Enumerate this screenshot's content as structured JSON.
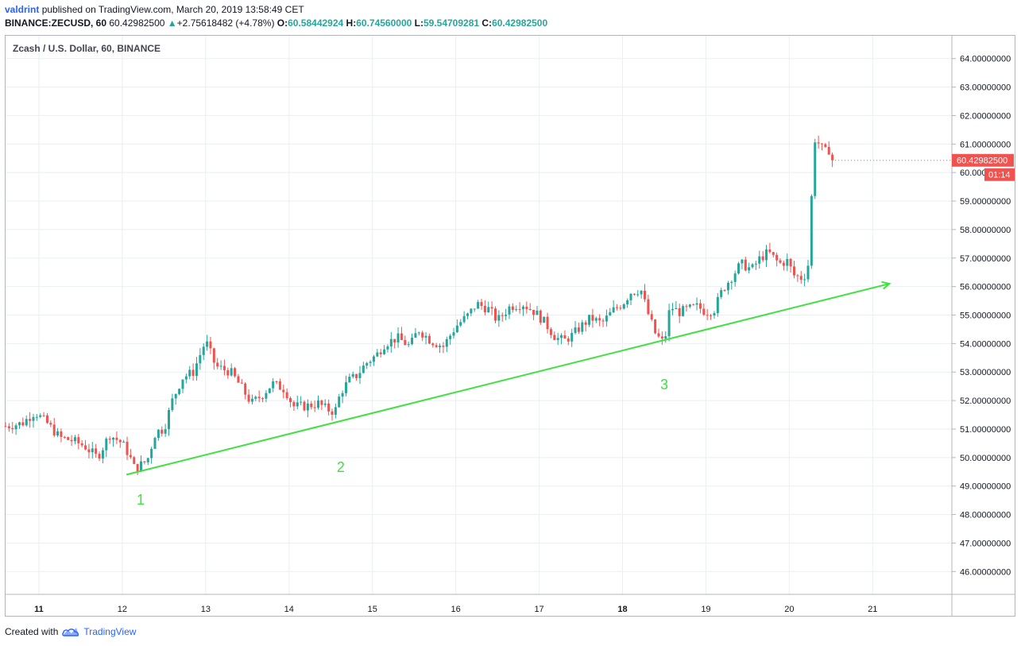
{
  "header": {
    "user": "valdrint",
    "published": "published on TradingView.com, March 20, 2019 13:58:49 CET",
    "symbol": "BINANCE:ZECUSD, 60",
    "last": "60.42982500",
    "change_arrow": "▲",
    "change": "+2.75618482 (+4.78%)",
    "o_label": "O:",
    "o": "60.58442924",
    "h_label": "H:",
    "h": "60.74560000",
    "l_label": "L:",
    "l": "59.54709281",
    "c_label": "C:",
    "c": "60.42982500"
  },
  "footer": {
    "created": "Created with",
    "brand": "TradingView",
    "logo_icon": "tradingview-cloud-icon"
  },
  "colors": {
    "up": "#26a69a",
    "down": "#ef5350",
    "trend": "#40e040",
    "grid": "#e9eff3",
    "price_tag": "#ef5350"
  },
  "chart_data": {
    "type": "candlestick",
    "title": "Zcash / U.S. Dollar, 60, BINANCE",
    "x_ticks": [
      "11",
      "12",
      "13",
      "14",
      "15",
      "16",
      "17",
      "18",
      "19",
      "20",
      "21"
    ],
    "x_ticks_bold": [
      "11",
      "18"
    ],
    "xlim_days": [
      10.6,
      21.95
    ],
    "ylim": [
      45.2,
      64.8
    ],
    "y_ticks": [
      "46.00000000",
      "47.00000000",
      "48.00000000",
      "49.00000000",
      "50.00000000",
      "51.00000000",
      "52.00000000",
      "53.00000000",
      "54.00000000",
      "55.00000000",
      "56.00000000",
      "57.00000000",
      "58.00000000",
      "59.00000000",
      "60.00000000",
      "61.00000000",
      "62.00000000",
      "63.00000000",
      "64.00000000"
    ],
    "last_price_label": "60.42982500",
    "countdown_label": "01:14",
    "closes": [
      [
        10.6,
        51.1
      ],
      [
        10.8,
        51.2
      ],
      [
        10.95,
        51.6
      ],
      [
        11.1,
        51.2
      ],
      [
        11.25,
        50.7
      ],
      [
        11.4,
        50.6
      ],
      [
        11.55,
        50.4
      ],
      [
        11.7,
        50.0
      ],
      [
        11.85,
        50.8
      ],
      [
        12.0,
        50.5
      ],
      [
        12.08,
        50.1
      ],
      [
        12.15,
        49.6
      ],
      [
        12.3,
        49.9
      ],
      [
        12.4,
        50.9
      ],
      [
        12.5,
        51.0
      ],
      [
        12.6,
        52.0
      ],
      [
        12.72,
        52.8
      ],
      [
        12.85,
        53.0
      ],
      [
        13.0,
        54.1
      ],
      [
        13.12,
        53.2
      ],
      [
        13.3,
        53.0
      ],
      [
        13.42,
        52.5
      ],
      [
        13.55,
        51.9
      ],
      [
        13.68,
        52.2
      ],
      [
        13.8,
        52.6
      ],
      [
        13.95,
        52.4
      ],
      [
        14.05,
        51.8
      ],
      [
        14.2,
        51.8
      ],
      [
        14.35,
        51.9
      ],
      [
        14.45,
        51.7
      ],
      [
        14.55,
        51.6
      ],
      [
        14.62,
        52.3
      ],
      [
        14.72,
        52.7
      ],
      [
        14.82,
        52.9
      ],
      [
        14.92,
        53.3
      ],
      [
        15.05,
        53.6
      ],
      [
        15.15,
        54.0
      ],
      [
        15.3,
        54.2
      ],
      [
        15.45,
        53.9
      ],
      [
        15.55,
        54.5
      ],
      [
        15.7,
        54.1
      ],
      [
        15.85,
        53.9
      ],
      [
        16.0,
        54.6
      ],
      [
        16.15,
        55.0
      ],
      [
        16.25,
        55.4
      ],
      [
        16.4,
        55.2
      ],
      [
        16.5,
        54.8
      ],
      [
        16.65,
        55.3
      ],
      [
        16.8,
        55.4
      ],
      [
        16.95,
        55.1
      ],
      [
        17.05,
        54.8
      ],
      [
        17.2,
        54.2
      ],
      [
        17.3,
        54.1
      ],
      [
        17.4,
        54.3
      ],
      [
        17.5,
        54.6
      ],
      [
        17.62,
        54.9
      ],
      [
        17.75,
        54.7
      ],
      [
        17.9,
        55.2
      ],
      [
        18.0,
        55.4
      ],
      [
        18.1,
        55.8
      ],
      [
        18.22,
        55.9
      ],
      [
        18.3,
        55.1
      ],
      [
        18.4,
        54.3
      ],
      [
        18.5,
        54.0
      ],
      [
        18.57,
        55.3
      ],
      [
        18.68,
        55.1
      ],
      [
        18.78,
        55.2
      ],
      [
        18.9,
        55.3
      ],
      [
        19.0,
        55.1
      ],
      [
        19.1,
        55.2
      ],
      [
        19.2,
        55.9
      ],
      [
        19.3,
        56.3
      ],
      [
        19.42,
        56.8
      ],
      [
        19.55,
        56.6
      ],
      [
        19.65,
        57.0
      ],
      [
        19.75,
        57.2
      ],
      [
        19.88,
        56.8
      ],
      [
        19.98,
        56.9
      ],
      [
        20.05,
        56.4
      ],
      [
        20.15,
        56.3
      ],
      [
        20.22,
        56.5
      ],
      [
        20.25,
        58.1
      ],
      [
        20.3,
        61.2
      ],
      [
        20.36,
        61.0
      ],
      [
        20.4,
        60.8
      ],
      [
        20.45,
        60.7
      ],
      [
        20.5,
        60.9
      ],
      [
        20.55,
        60.43
      ]
    ],
    "trendline": {
      "start": [
        12.05,
        49.4
      ],
      "end": [
        21.2,
        56.1
      ]
    },
    "annotations": [
      {
        "label": "1",
        "x": 12.22,
        "y": 48.35
      },
      {
        "label": "2",
        "x": 14.62,
        "y": 49.5
      },
      {
        "label": "3",
        "x": 18.5,
        "y": 52.4
      }
    ]
  }
}
